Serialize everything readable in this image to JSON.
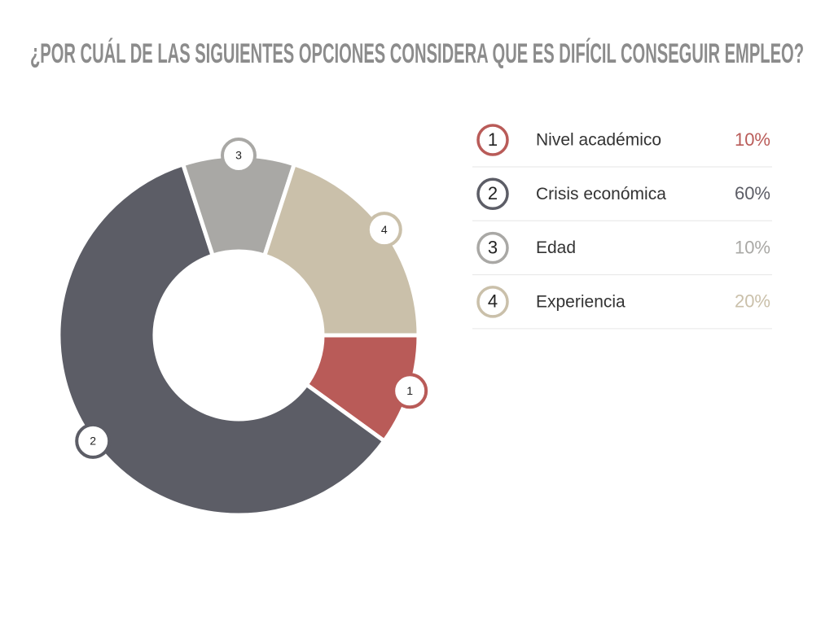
{
  "chart_data": {
    "type": "pie",
    "title": "¿POR CUÁL DE LAS SIGUIENTES OPCIONES CONSIDERA QUE ES DIFÍCIL CONSEGUIR EMPLEO?",
    "categories": [
      "Nivel académico",
      "Crisis económica",
      "Edad",
      "Experiencia"
    ],
    "markers": [
      "1",
      "2",
      "3",
      "4"
    ],
    "values": [
      10,
      60,
      10,
      20
    ],
    "value_labels": [
      "10%",
      "60%",
      "10%",
      "20%"
    ],
    "colors": [
      "#b95b58",
      "#5c5d66",
      "#a9a8a5",
      "#cac0aa"
    ]
  }
}
